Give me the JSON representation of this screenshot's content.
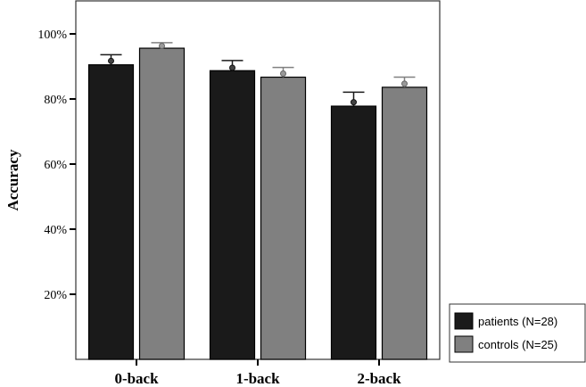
{
  "chart_data": {
    "type": "bar",
    "ylabel": "Accuracy",
    "xlabel": "",
    "categories": [
      "0-back",
      "1-back",
      "2-back"
    ],
    "ylim": [
      0,
      110
    ],
    "yticks": [
      20,
      40,
      60,
      80,
      100
    ],
    "ytick_labels": [
      "20%",
      "40%",
      "60%",
      "80%",
      "100%"
    ],
    "series": [
      {
        "name": "patients (N=28)",
        "color": "#1a1a1a",
        "values": [
          90.5,
          88.7,
          77.8
        ],
        "error_upper": [
          93.6,
          91.8,
          82.1
        ],
        "points": [
          91.7,
          89.6,
          79.0
        ]
      },
      {
        "name": "controls (N=25)",
        "color": "#808080",
        "values": [
          95.6,
          86.7,
          83.6
        ],
        "error_upper": [
          97.3,
          89.7,
          86.7
        ],
        "points": [
          96.3,
          87.8,
          84.7
        ]
      }
    ],
    "legend_position": "bottom-right",
    "grid": false
  }
}
